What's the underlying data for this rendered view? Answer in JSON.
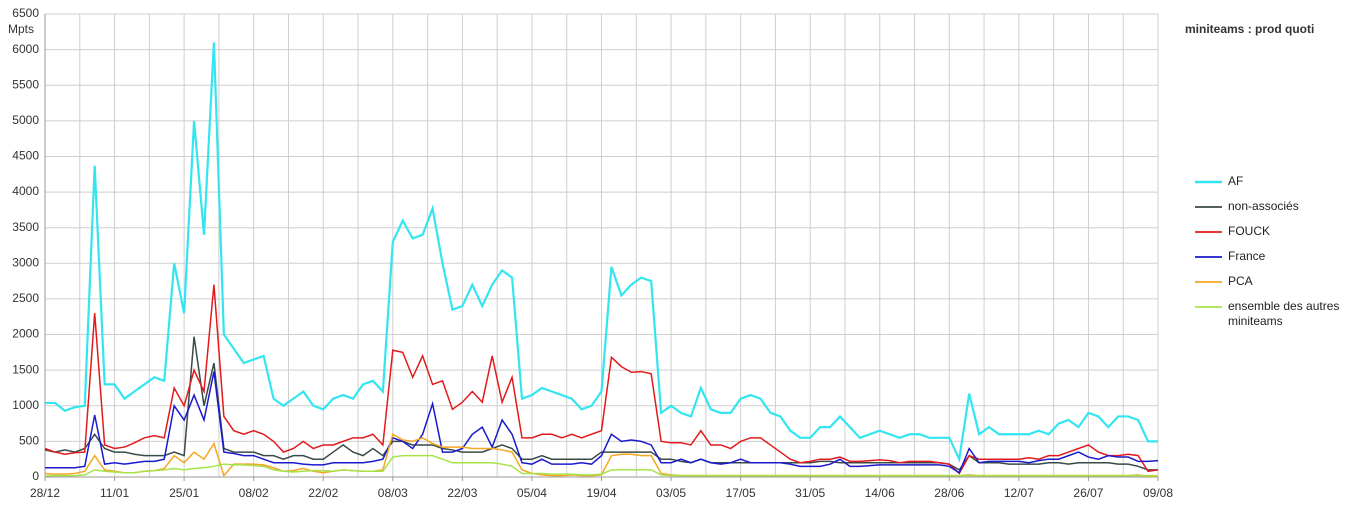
{
  "chart_data": {
    "type": "line",
    "title": "miniteams : prod quoti",
    "y_label": "Mpts",
    "categories": [
      "28/12",
      null,
      null,
      null,
      null,
      null,
      null,
      "11/01",
      null,
      null,
      null,
      null,
      null,
      null,
      "25/01",
      null,
      null,
      null,
      null,
      null,
      null,
      "08/02",
      null,
      null,
      null,
      null,
      null,
      null,
      "22/02",
      null,
      null,
      null,
      null,
      null,
      null,
      "08/03",
      null,
      null,
      null,
      null,
      null,
      null,
      "22/03",
      null,
      null,
      null,
      null,
      null,
      null,
      "05/04",
      null,
      null,
      null,
      null,
      null,
      null,
      "19/04",
      null,
      null,
      null,
      null,
      null,
      null,
      "03/05",
      null,
      null,
      null,
      null,
      null,
      null,
      "17/05",
      null,
      null,
      null,
      null,
      null,
      null,
      "31/05",
      null,
      null,
      null,
      null,
      null,
      null,
      "14/06",
      null,
      null,
      null,
      null,
      null,
      null,
      "28/06",
      null,
      null,
      null,
      null,
      null,
      null,
      "12/07",
      null,
      null,
      null,
      null,
      null,
      null,
      "26/07",
      null,
      null,
      null,
      null,
      null,
      null,
      "09/08"
    ],
    "ylim": [
      0,
      6500
    ],
    "yticks": [
      0,
      500,
      1000,
      1500,
      2000,
      2500,
      3000,
      3500,
      4000,
      4500,
      5000,
      5500,
      6000,
      6500
    ],
    "grid": true,
    "series": [
      {
        "name": "AF",
        "color": "#33e5f0",
        "values": [
          1040,
          1040,
          930,
          980,
          1000,
          4370,
          1300,
          1300,
          1100,
          1200,
          1300,
          1400,
          1350,
          3000,
          2300,
          5000,
          3400,
          6100,
          2000,
          1800,
          1600,
          1650,
          1700,
          1100,
          1000,
          1100,
          1200,
          1000,
          950,
          1100,
          1150,
          1100,
          1300,
          1350,
          1200,
          3300,
          3600,
          3350,
          3400,
          3770,
          3000,
          2350,
          2400,
          2700,
          2400,
          2700,
          2900,
          2800,
          1100,
          1150,
          1250,
          1200,
          1150,
          1100,
          950,
          1000,
          1200,
          2950,
          2550,
          2700,
          2800,
          2750,
          900,
          1000,
          900,
          850,
          1250,
          950,
          900,
          900,
          1100,
          1150,
          1100,
          900,
          850,
          650,
          550,
          550,
          700,
          700,
          850,
          700,
          550,
          600,
          650,
          600,
          550,
          600,
          600,
          550,
          550,
          550,
          250,
          1170,
          600,
          700,
          600,
          600,
          600,
          600,
          650,
          600,
          750,
          800,
          700,
          900,
          850,
          700,
          850,
          850,
          800,
          500,
          500
        ]
      },
      {
        "name": "non-associés",
        "color": "#3a4a48",
        "values": [
          380,
          350,
          380,
          350,
          400,
          600,
          400,
          350,
          350,
          320,
          300,
          300,
          300,
          350,
          300,
          1970,
          1000,
          1600,
          400,
          350,
          350,
          350,
          300,
          300,
          250,
          300,
          300,
          250,
          250,
          350,
          450,
          350,
          300,
          400,
          300,
          500,
          500,
          450,
          450,
          450,
          400,
          380,
          350,
          350,
          350,
          400,
          450,
          400,
          250,
          250,
          300,
          250,
          250,
          250,
          250,
          250,
          350,
          350,
          350,
          350,
          350,
          350,
          250,
          250,
          220,
          200,
          250,
          200,
          200,
          200,
          200,
          200,
          200,
          200,
          200,
          200,
          200,
          200,
          220,
          220,
          200,
          200,
          200,
          200,
          200,
          200,
          200,
          200,
          200,
          200,
          200,
          180,
          100,
          300,
          200,
          200,
          200,
          180,
          180,
          180,
          180,
          200,
          200,
          180,
          200,
          200,
          200,
          200,
          180,
          180,
          150,
          100,
          100
        ]
      },
      {
        "name": "FOUCK",
        "color": "#e31a1c",
        "values": [
          400,
          350,
          320,
          340,
          350,
          2300,
          450,
          400,
          420,
          480,
          550,
          580,
          550,
          1250,
          1000,
          1500,
          1200,
          2700,
          850,
          650,
          600,
          650,
          600,
          500,
          350,
          400,
          500,
          400,
          450,
          450,
          500,
          550,
          550,
          600,
          450,
          1780,
          1750,
          1400,
          1700,
          1300,
          1350,
          950,
          1050,
          1200,
          1050,
          1700,
          1050,
          1400,
          550,
          550,
          600,
          600,
          550,
          600,
          550,
          600,
          650,
          1680,
          1550,
          1470,
          1480,
          1450,
          500,
          480,
          480,
          450,
          650,
          450,
          450,
          400,
          500,
          550,
          550,
          450,
          350,
          250,
          200,
          220,
          250,
          250,
          280,
          220,
          220,
          230,
          240,
          230,
          200,
          220,
          220,
          220,
          200,
          180,
          50,
          300,
          250,
          250,
          250,
          250,
          250,
          270,
          250,
          300,
          300,
          350,
          400,
          450,
          350,
          300,
          300,
          320,
          300,
          80,
          100
        ]
      },
      {
        "name": "France",
        "color": "#1a1acc",
        "values": [
          130,
          130,
          130,
          130,
          150,
          870,
          180,
          200,
          180,
          200,
          220,
          220,
          250,
          1000,
          800,
          1150,
          800,
          1480,
          350,
          330,
          300,
          300,
          250,
          200,
          200,
          200,
          180,
          170,
          170,
          200,
          200,
          200,
          200,
          220,
          250,
          550,
          500,
          400,
          600,
          1030,
          350,
          350,
          400,
          600,
          700,
          420,
          800,
          600,
          200,
          180,
          250,
          180,
          180,
          180,
          200,
          180,
          300,
          600,
          500,
          520,
          500,
          450,
          200,
          200,
          250,
          200,
          250,
          200,
          180,
          200,
          250,
          200,
          200,
          200,
          200,
          180,
          150,
          150,
          150,
          180,
          250,
          150,
          150,
          160,
          170,
          170,
          170,
          170,
          170,
          170,
          170,
          150,
          60,
          400,
          200,
          220,
          220,
          220,
          220,
          200,
          230,
          250,
          250,
          300,
          350,
          280,
          250,
          300,
          280,
          280,
          220,
          220,
          230
        ]
      },
      {
        "name": "PCA",
        "color": "#f5a623",
        "values": [
          50,
          40,
          40,
          50,
          80,
          300,
          100,
          80,
          60,
          60,
          80,
          90,
          120,
          300,
          200,
          350,
          250,
          470,
          20,
          180,
          180,
          180,
          170,
          130,
          80,
          90,
          120,
          80,
          60,
          80,
          100,
          90,
          80,
          80,
          100,
          600,
          520,
          500,
          550,
          470,
          420,
          420,
          420,
          400,
          400,
          400,
          380,
          350,
          100,
          50,
          30,
          20,
          20,
          30,
          20,
          20,
          30,
          300,
          320,
          320,
          300,
          300,
          50,
          30,
          20,
          20,
          20,
          20,
          20,
          20,
          20,
          20,
          20,
          20,
          20,
          20,
          20,
          20,
          20,
          20,
          20,
          20,
          20,
          20,
          20,
          20,
          20,
          20,
          20,
          20,
          20,
          20,
          20,
          30,
          20,
          20,
          20,
          20,
          20,
          20,
          20,
          20,
          20,
          20,
          20,
          20,
          20,
          20,
          20,
          20,
          30,
          10,
          10
        ]
      },
      {
        "name": "ensemble des autres miniteams",
        "color": "#a6e34a",
        "values": [
          20,
          20,
          20,
          20,
          30,
          100,
          80,
          70,
          60,
          60,
          80,
          90,
          100,
          120,
          100,
          120,
          130,
          150,
          180,
          170,
          170,
          160,
          150,
          100,
          80,
          70,
          80,
          90,
          90,
          80,
          100,
          90,
          80,
          80,
          80,
          280,
          300,
          300,
          300,
          300,
          250,
          200,
          200,
          200,
          200,
          200,
          180,
          150,
          50,
          50,
          50,
          40,
          40,
          40,
          30,
          30,
          40,
          100,
          100,
          100,
          100,
          100,
          30,
          20,
          20,
          20,
          20,
          20,
          20,
          20,
          20,
          20,
          20,
          20,
          20,
          20,
          20,
          20,
          20,
          20,
          20,
          20,
          20,
          20,
          20,
          20,
          20,
          20,
          20,
          20,
          20,
          20,
          20,
          20,
          20,
          20,
          20,
          20,
          20,
          20,
          20,
          20,
          20,
          20,
          20,
          20,
          20,
          20,
          20,
          20,
          20,
          20,
          20
        ]
      }
    ]
  }
}
